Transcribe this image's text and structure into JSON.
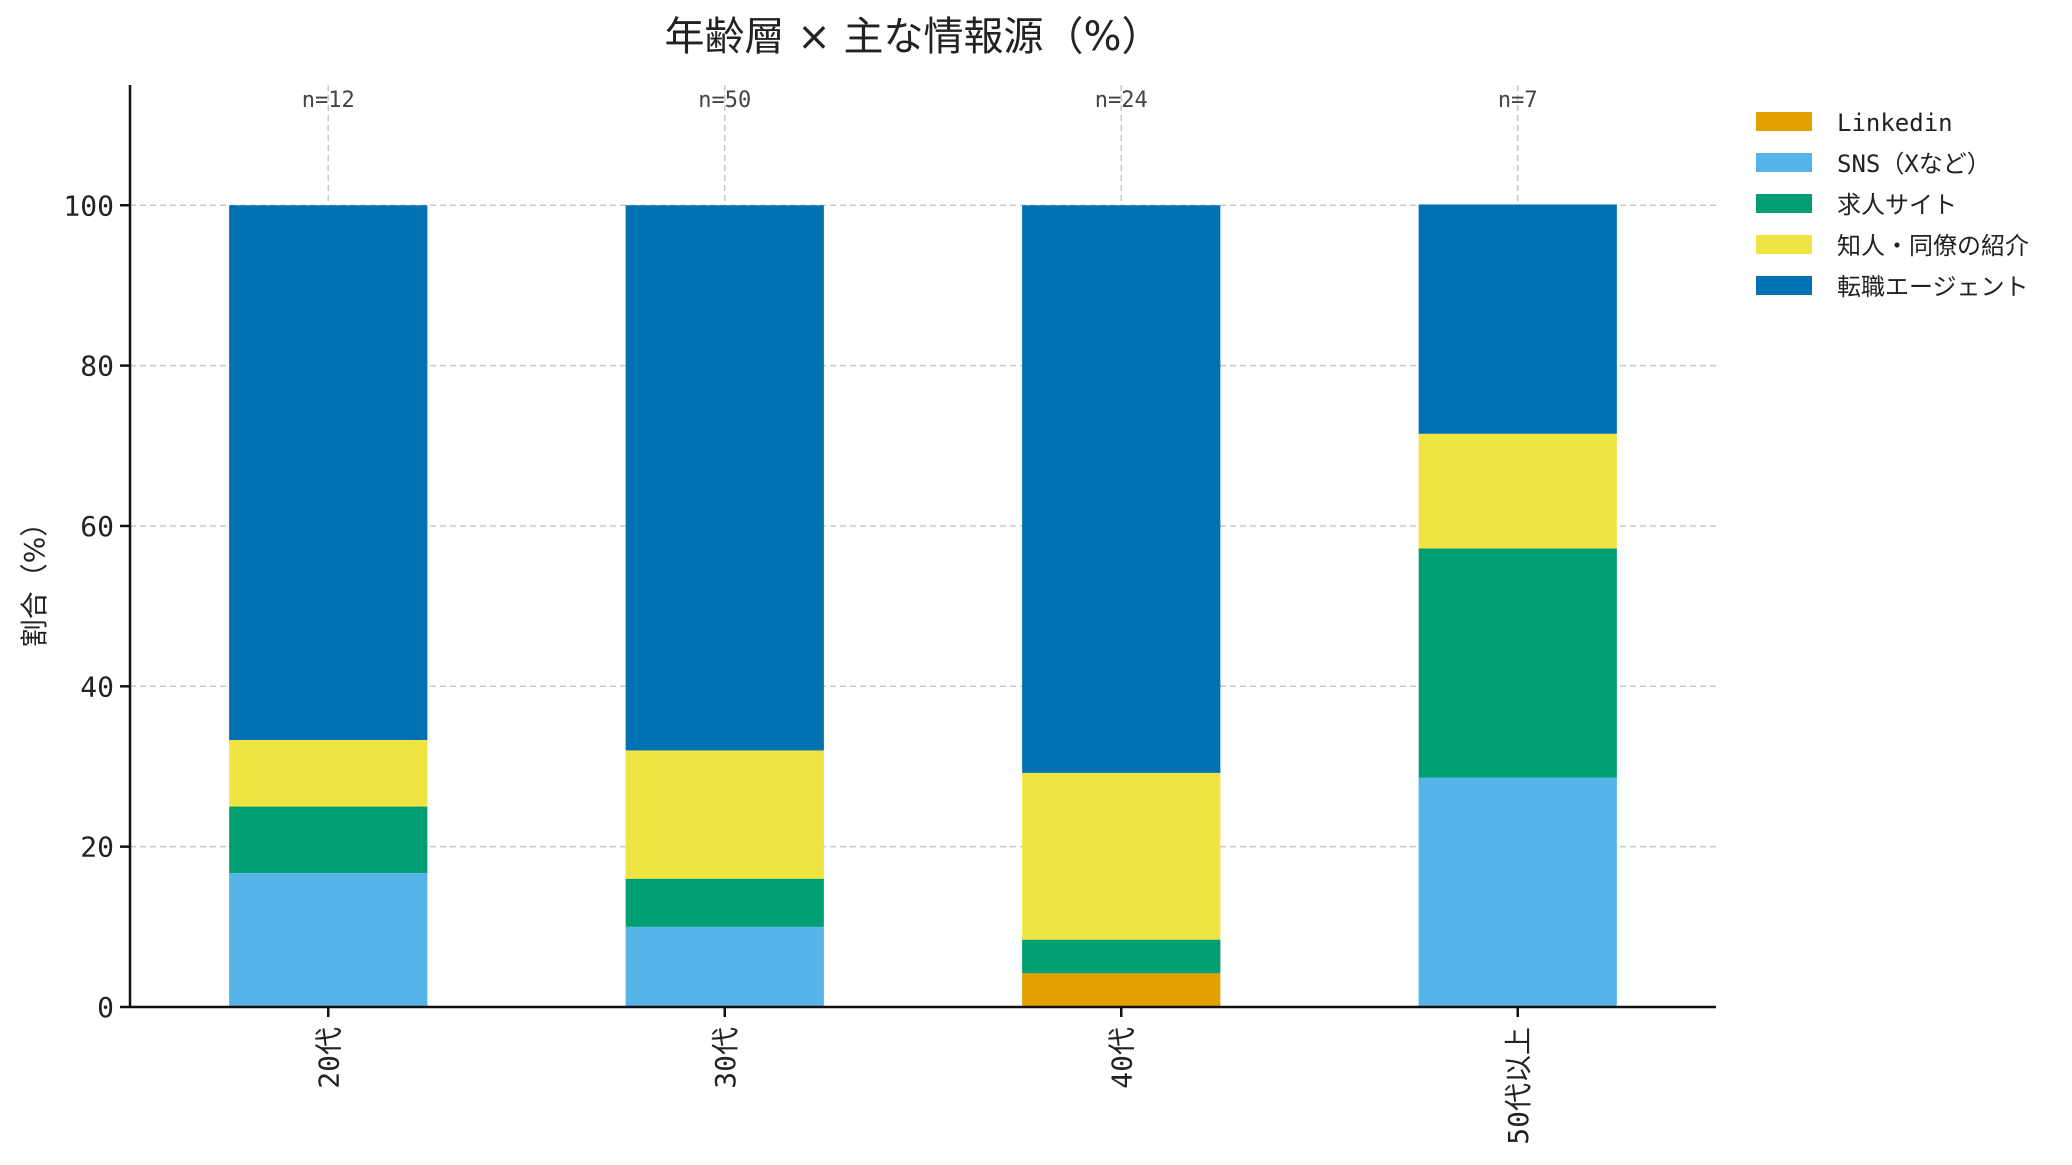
{
  "chart_data": {
    "type": "bar",
    "stacked": true,
    "title": "年齢層 × 主な情報源（%）",
    "xlabel": "",
    "ylabel": "割合（%）",
    "ylim": [
      0,
      115
    ],
    "yticks": [
      0,
      20,
      40,
      60,
      80,
      100
    ],
    "grid": true,
    "legend_position": "top-right",
    "categories": [
      "20代",
      "30代",
      "40代",
      "50代以上"
    ],
    "sample_sizes": [
      "n=12",
      "n=50",
      "n=24",
      "n=7"
    ],
    "series": [
      {
        "name": "Linkedin",
        "color": "#E69F00",
        "values": [
          0,
          0,
          4.2,
          0
        ]
      },
      {
        "name": "SNS（Xなど）",
        "color": "#56B4E9",
        "values": [
          16.7,
          10,
          0,
          28.6
        ]
      },
      {
        "name": "求人サイト",
        "color": "#009E73",
        "values": [
          8.3,
          6,
          4.2,
          28.6
        ]
      },
      {
        "name": "知人・同僚の紹介",
        "color": "#F0E442",
        "values": [
          8.3,
          16,
          20.8,
          14.3
        ]
      },
      {
        "name": "転職エージェント",
        "color": "#0072B2",
        "values": [
          66.7,
          68,
          70.8,
          28.6
        ]
      }
    ]
  }
}
